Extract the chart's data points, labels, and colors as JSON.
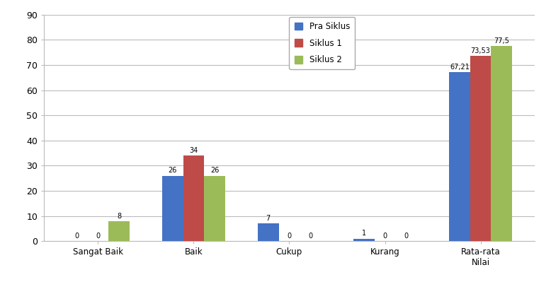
{
  "categories": [
    "Sangat Baik",
    "Baik",
    "Cukup",
    "Kurang",
    "Rata-rata\nNilai"
  ],
  "series": {
    "Pra Siklus": [
      0,
      26,
      7,
      1,
      67.21
    ],
    "Siklus 1": [
      0,
      34,
      0,
      0,
      73.53
    ],
    "Siklus 2": [
      8,
      26,
      0,
      0,
      77.5
    ]
  },
  "colors": {
    "Pra Siklus": "#4472C4",
    "Siklus 1": "#BE4B48",
    "Siklus 2": "#9BBB59"
  },
  "label_texts": {
    "Pra Siklus": [
      "0",
      "26",
      "7",
      "1",
      "67,21"
    ],
    "Siklus 1": [
      "0",
      "34",
      "0",
      "0",
      "73,53"
    ],
    "Siklus 2": [
      "8",
      "26",
      "0",
      "0",
      "77,5"
    ]
  },
  "ylim": [
    0,
    90
  ],
  "yticks": [
    0,
    10,
    20,
    30,
    40,
    50,
    60,
    70,
    80,
    90
  ],
  "bar_width": 0.22,
  "legend_order": [
    "Pra Siklus",
    "Siklus 1",
    "Siklus 2"
  ],
  "background_color": "#FFFFFF",
  "grid_color": "#BBBBBB"
}
